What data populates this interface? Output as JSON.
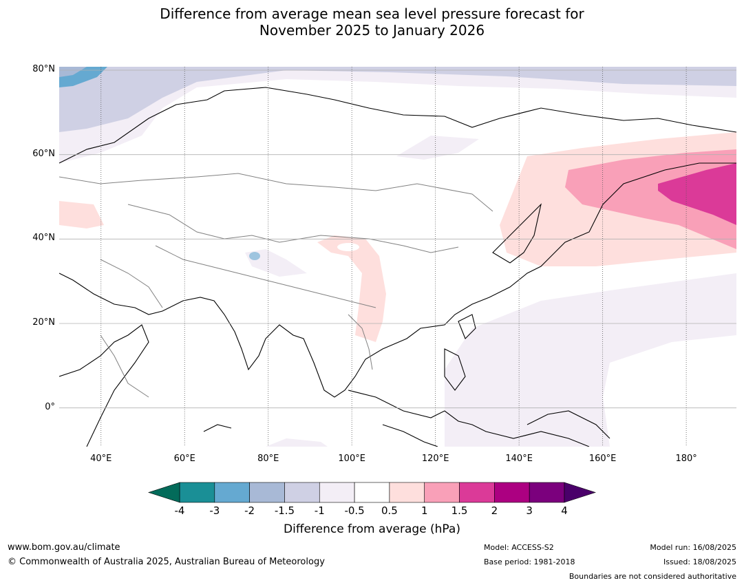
{
  "title": "Difference from average mean sea level pressure forecast for\nNovember 2025 to January 2026",
  "map": {
    "projection": "equirectangular",
    "lon_range": [
      30,
      192
    ],
    "lat_range": [
      -10,
      80
    ],
    "lat_ticks": [
      {
        "value": 80,
        "label": "80°N"
      },
      {
        "value": 60,
        "label": "60°N"
      },
      {
        "value": 40,
        "label": "40°N"
      },
      {
        "value": 20,
        "label": "20°N"
      },
      {
        "value": 0,
        "label": "0°"
      }
    ],
    "lon_ticks": [
      {
        "value": 40,
        "label": "40°E"
      },
      {
        "value": 60,
        "label": "60°E"
      },
      {
        "value": 80,
        "label": "80°E"
      },
      {
        "value": 100,
        "label": "100°E"
      },
      {
        "value": 120,
        "label": "120°E"
      },
      {
        "value": 140,
        "label": "140°E"
      },
      {
        "value": 160,
        "label": "160°E"
      },
      {
        "value": 180,
        "label": "180°"
      }
    ]
  },
  "colorbar": {
    "title": "Difference from average (hPa)",
    "ticks": [
      "-4",
      "-3",
      "-2",
      "-1.5",
      "-1",
      "-0.5",
      "0.5",
      "1",
      "1.5",
      "2",
      "3",
      "4"
    ],
    "colors": [
      "#1a8f96",
      "#65a9d1",
      "#a8b9d6",
      "#cfd0e4",
      "#f3eef6",
      "#ffffff",
      "#fedfdd",
      "#f9a0b8",
      "#db3a98",
      "#ac0081",
      "#7b007d"
    ],
    "under_color": "#036b5a",
    "over_color": "#4a006a"
  },
  "footer": {
    "url": "www.bom.gov.au/climate",
    "copyright": "© Commonwealth of Australia 2025, Australian Bureau of Meteorology",
    "model": "Model: ACCESS-S2",
    "base_period": "Base period: 1981-2018",
    "model_run": "Model run: 16/08/2025",
    "issued": "Issued: 18/08/2025",
    "disclaimer": "Boundaries are not considered authoritative"
  }
}
